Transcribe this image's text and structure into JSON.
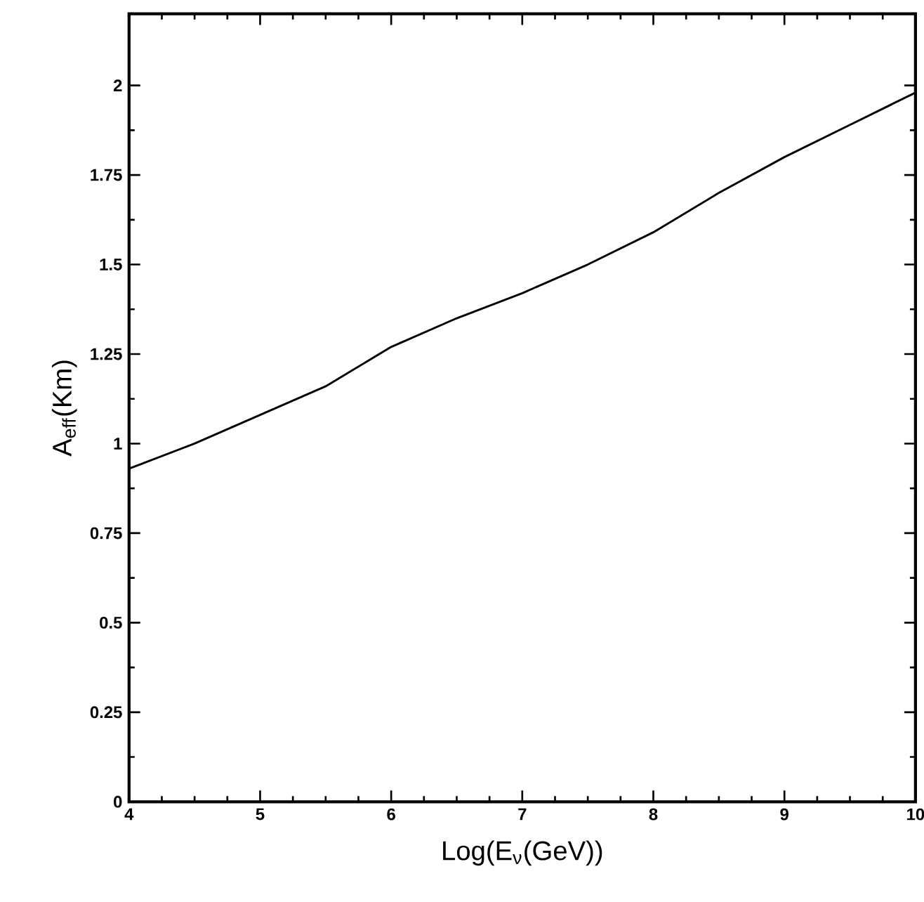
{
  "chart_data": {
    "type": "line",
    "xlabel": "Log(E$_{ν}$(GeV))",
    "ylabel": "A$_{eff}$(Km)",
    "x": [
      4,
      4.5,
      5,
      5.5,
      6,
      6.5,
      7,
      7.5,
      8,
      8.5,
      9,
      9.5,
      10
    ],
    "series": [
      {
        "color": "#000000",
        "values": [
          0.93,
          1.0,
          1.08,
          1.16,
          1.27,
          1.35,
          1.42,
          1.5,
          1.59,
          1.7,
          1.8,
          1.89,
          1.98
        ]
      }
    ],
    "xlim": [
      4,
      10
    ],
    "ylim": [
      0,
      2.2
    ],
    "xticks": [
      4,
      5,
      6,
      7,
      8,
      9,
      10
    ],
    "yticks": [
      0,
      0.25,
      0.5,
      0.75,
      1,
      1.25,
      1.5,
      1.75,
      2
    ],
    "grid": false,
    "marker": "none",
    "line_style": "solid"
  }
}
